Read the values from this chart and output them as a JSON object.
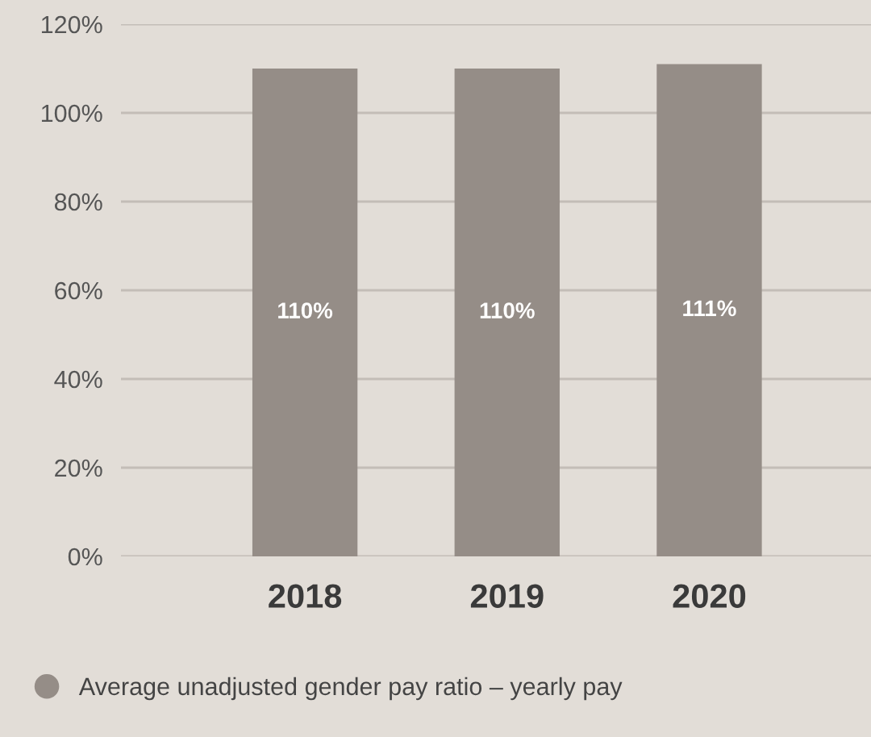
{
  "chart_data": {
    "type": "bar",
    "categories": [
      "2018",
      "2019",
      "2020"
    ],
    "series": [
      {
        "name": "Average unadjusted gender pay ratio – yearly pay",
        "color": "#958d87",
        "values": [
          110,
          110,
          111
        ],
        "value_labels": [
          "110%",
          "110%",
          "111%"
        ]
      }
    ],
    "ylim": [
      0,
      120
    ],
    "yticks": [
      {
        "value": 0,
        "label": "0%"
      },
      {
        "value": 20,
        "label": "20%"
      },
      {
        "value": 40,
        "label": "40%"
      },
      {
        "value": 60,
        "label": "60%"
      },
      {
        "value": 80,
        "label": "80%"
      },
      {
        "value": 100,
        "label": "100%"
      },
      {
        "value": 120,
        "label": "120%"
      }
    ],
    "grid": "y",
    "legend": "bottom"
  }
}
